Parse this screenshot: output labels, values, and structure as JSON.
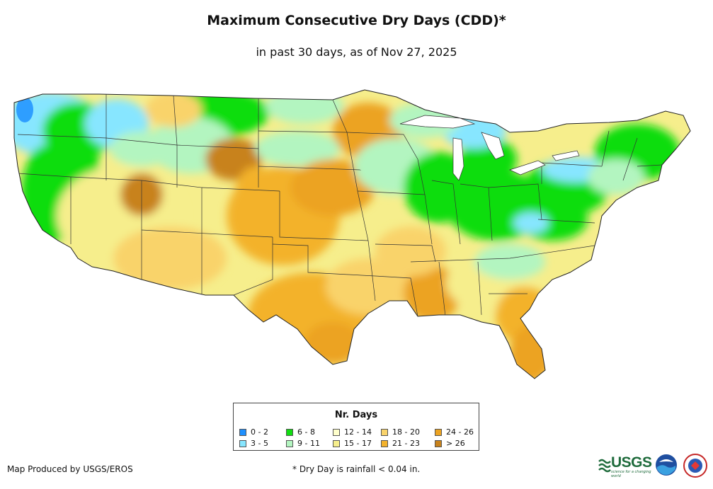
{
  "title": "Maximum Consecutive Dry Days (CDD)*",
  "subtitle": "in past 30 days, as of Nov 27, 2025",
  "legend": {
    "title": "Nr. Days",
    "items": [
      {
        "label": "0 - 2",
        "color": "#1e90ff"
      },
      {
        "label": "3 - 5",
        "color": "#87e6ff"
      },
      {
        "label": "6 - 8",
        "color": "#11dd11"
      },
      {
        "label": "9 - 11",
        "color": "#b3f5c0"
      },
      {
        "label": "12 - 14",
        "color": "#ffffcc"
      },
      {
        "label": "15 - 17",
        "color": "#f6ee8c"
      },
      {
        "label": "18 - 20",
        "color": "#f9d36b"
      },
      {
        "label": "21 - 23",
        "color": "#f3b22c"
      },
      {
        "label": "24 - 26",
        "color": "#eca321"
      },
      {
        "label": "> 26",
        "color": "#c8821b"
      }
    ]
  },
  "footer": {
    "producer": "Map Produced by USGS/EROS",
    "note": "* Dry Day is rainfall < 0.04 in."
  },
  "logos": {
    "usgs_text": "USGS",
    "usgs_tagline": "science for a changing world",
    "noaa": "noaa-logo",
    "nws": "nws-logo"
  }
}
